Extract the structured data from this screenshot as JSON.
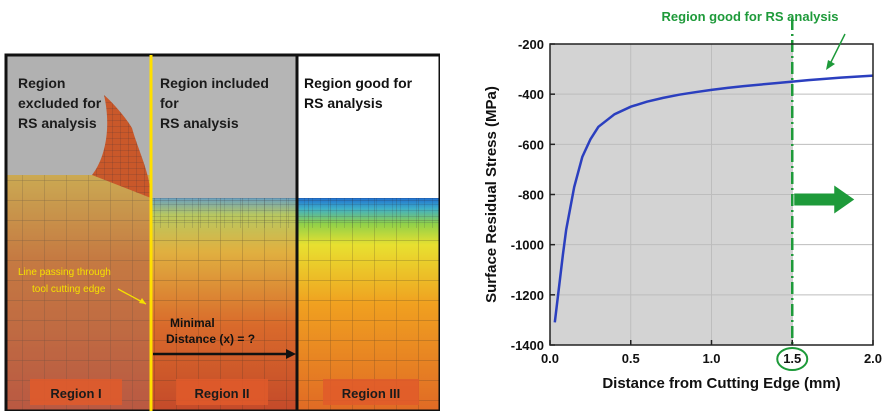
{
  "fem_panel": {
    "region_1_label": "Region excluded for RS analysis",
    "region_1_lines": [
      "Region",
      "excluded for",
      "RS analysis"
    ],
    "region_2_lines": [
      "Region included",
      "for",
      "RS analysis"
    ],
    "region_3_lines": [
      "Region good for",
      "RS analysis"
    ],
    "line_note_lines": [
      "Line passing through",
      "tool cutting edge"
    ],
    "distance_lines": [
      "Minimal",
      "Distance (x) = ?"
    ],
    "region_names": [
      "Region I",
      "Region II",
      "Region III"
    ],
    "colors": {
      "excluded_shade": "#a9a9a9",
      "cutting_line": "#ffe000",
      "boundary": "#111111",
      "mesh_hot": "#d9562a",
      "mesh_surface": "#1f6fd1"
    }
  },
  "chart_data": {
    "type": "line",
    "title": "Region good  for RS analysis",
    "xlabel": "Distance from Cutting Edge (mm)",
    "ylabel": "Surface Residual Stress (MPa)",
    "xlim": [
      0.0,
      2.0
    ],
    "ylim": [
      -1400,
      -200
    ],
    "x_ticks": [
      "0.0",
      "0.5",
      "1.0",
      "1.5",
      "2.0"
    ],
    "y_ticks": [
      "-200",
      "-400",
      "-600",
      "-800",
      "-1000",
      "-1200",
      "-1400"
    ],
    "x_tick_values": [
      0.0,
      0.5,
      1.0,
      1.5,
      2.0
    ],
    "y_tick_values": [
      -200,
      -400,
      -600,
      -800,
      -1000,
      -1200,
      -1400
    ],
    "highlighted_tick": "1.5",
    "threshold_x": 1.5,
    "shaded_region": [
      0.0,
      1.5
    ],
    "series": [
      {
        "color": "#2b3fbf",
        "x": [
          0.03,
          0.05,
          0.08,
          0.1,
          0.15,
          0.2,
          0.25,
          0.3,
          0.4,
          0.5,
          0.6,
          0.7,
          0.8,
          0.9,
          1.0,
          1.1,
          1.2,
          1.3,
          1.4,
          1.5,
          1.6,
          1.7,
          1.8,
          1.9,
          2.0
        ],
        "y": [
          -1310,
          -1200,
          -1040,
          -940,
          -770,
          -650,
          -580,
          -530,
          -480,
          -450,
          -430,
          -415,
          -402,
          -392,
          -383,
          -375,
          -368,
          -362,
          -356,
          -350,
          -344,
          -339,
          -334,
          -330,
          -326
        ]
      }
    ],
    "colors": {
      "shade": "#d3d3d3",
      "threshold_line": "#1e9a3a",
      "annotation": "#1e9a3a",
      "arrow": "#1e9a3a"
    }
  }
}
